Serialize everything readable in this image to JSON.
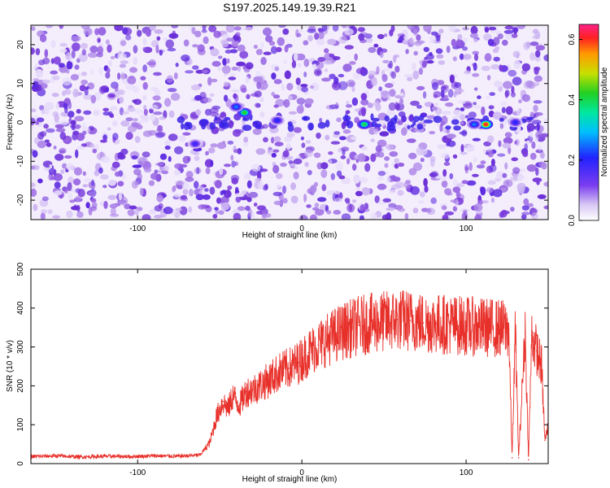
{
  "title": "S197.2025.149.19.39.R21",
  "chart_data": [
    {
      "type": "heatmap",
      "xlabel": "Height of straight line (km)",
      "ylabel": "Frequency (Hz)",
      "xlim": [
        -165,
        150
      ],
      "ylim": [
        -25,
        25
      ],
      "xticks": [
        -100,
        0,
        100
      ],
      "yticks": [
        -20,
        -10,
        0,
        10,
        20
      ],
      "colorbar": {
        "label": "Normalized spectral amplitude",
        "range": [
          0,
          0.65
        ],
        "ticks": [
          0.0,
          0.2,
          0.4,
          0.6
        ],
        "tick_labels": [
          "0.0",
          "0.2",
          "0.4",
          "0.6"
        ]
      },
      "features": [
        {
          "x": -35,
          "y": 2.5,
          "value": 0.42
        },
        {
          "x": -40,
          "y": 4,
          "value": 0.25
        },
        {
          "x": -65,
          "y": -5.5,
          "value": 0.18
        },
        {
          "x": -15,
          "y": 0.5,
          "value": 0.2
        },
        {
          "x": 38,
          "y": -0.5,
          "value": 0.4
        },
        {
          "x": 112,
          "y": -0.5,
          "value": 0.6
        },
        {
          "x": 105,
          "y": -0.5,
          "value": 0.25
        },
        {
          "x": 130,
          "y": 0,
          "value": 0.2
        }
      ],
      "grid": false,
      "legend": "none"
    },
    {
      "type": "line",
      "xlabel": "Height of straight line (km)",
      "ylabel": "SNR (10 * v/v)",
      "xlim": [
        -165,
        150
      ],
      "ylim": [
        0,
        500
      ],
      "xticks": [
        -100,
        0,
        100
      ],
      "yticks": [
        0,
        100,
        200,
        300,
        400,
        500
      ],
      "series": [
        {
          "color": "#e8302a",
          "x": [
            -165,
            -150,
            -135,
            -120,
            -105,
            -90,
            -75,
            -62,
            -56,
            -52,
            -48,
            -45,
            -42,
            -38,
            -34,
            -30,
            -26,
            -20,
            -14,
            -8,
            -2,
            4,
            10,
            16,
            22,
            28,
            35,
            42,
            50,
            58,
            66,
            74,
            82,
            90,
            98,
            106,
            114,
            120,
            126,
            128,
            130,
            132,
            136,
            138,
            140,
            143,
            146,
            148,
            150
          ],
          "y": [
            18,
            20,
            17,
            19,
            18,
            20,
            19,
            22,
            55,
            120,
            160,
            140,
            175,
            150,
            185,
            190,
            200,
            215,
            235,
            245,
            260,
            285,
            305,
            320,
            335,
            345,
            355,
            360,
            365,
            370,
            368,
            362,
            360,
            358,
            355,
            352,
            350,
            348,
            345,
            15,
            345,
            15,
            340,
            10,
            330,
            290,
            250,
            60,
            95
          ]
        }
      ],
      "grid": false,
      "legend": "none"
    }
  ]
}
